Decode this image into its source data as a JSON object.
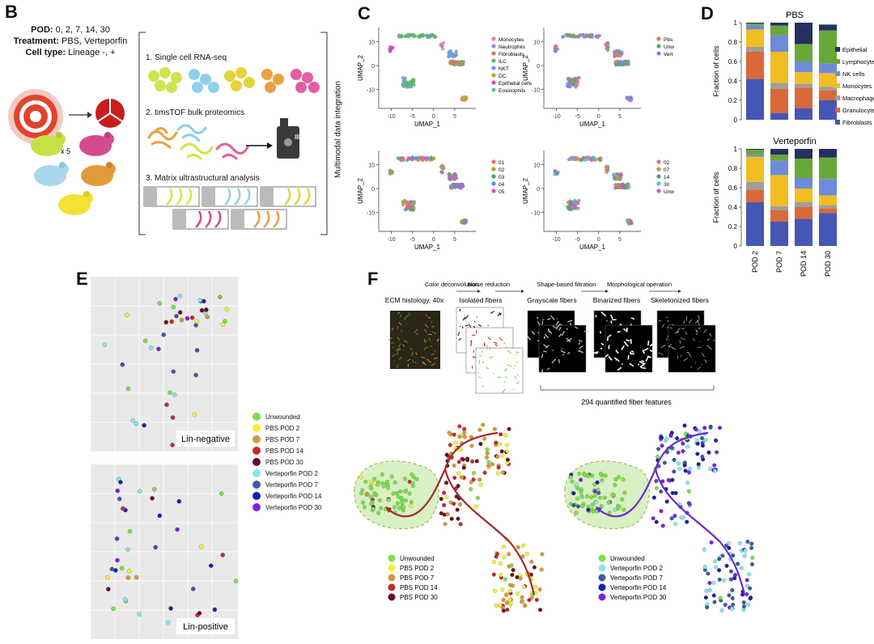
{
  "panels": {
    "B": "B",
    "C": "C",
    "D": "D",
    "E": "E",
    "F": "F"
  },
  "B": {
    "pod_label": "POD:",
    "pod_value": "0, 2, 7, 14, 30",
    "treat_label": "Treatment:",
    "treat_value": "PBS, Verteporfin",
    "cell_label": "Cell type:",
    "cell_value": "Lineage -, +",
    "times": "x 5",
    "step1": "1. Single cell RNA-seq",
    "step2": "2. timsTOF bulk proteomics",
    "step3": "3. Matrix ultrastructural analysis",
    "side": "Multimodal data integration",
    "wound_numbers": [
      "1",
      "2",
      "3"
    ]
  },
  "C": {
    "xlabel": "UMAP_1",
    "ylabel": "UMAP_2",
    "xticks": [
      "-10",
      "-5",
      "0",
      "5"
    ],
    "yticks": [
      "10",
      "0",
      "-10"
    ],
    "legend1": [
      {
        "label": "Monocytes",
        "color": "#e87da8"
      },
      {
        "label": "Neutrophils",
        "color": "#a38ad0"
      },
      {
        "label": "Fibroblasts",
        "color": "#d27b6a"
      },
      {
        "label": "ILC",
        "color": "#63b56a"
      },
      {
        "label": "NKT",
        "color": "#6b9be0"
      },
      {
        "label": "DC",
        "color": "#c4a437"
      },
      {
        "label": "Epithelial cells",
        "color": "#d04ec4"
      },
      {
        "label": "Eosinophils",
        "color": "#6fc596"
      }
    ],
    "legend2": [
      {
        "label": "Pbs",
        "color": "#e57373"
      },
      {
        "label": "Unw",
        "color": "#5aa86a"
      },
      {
        "label": "Vert",
        "color": "#6b8cf0"
      }
    ],
    "legend3": [
      {
        "label": "01",
        "color": "#e57373"
      },
      {
        "label": "02",
        "color": "#a8a040"
      },
      {
        "label": "03",
        "color": "#43a86a"
      },
      {
        "label": "04",
        "color": "#5b8ce8"
      },
      {
        "label": "05",
        "color": "#d05ac4"
      }
    ],
    "legend4": [
      {
        "label": "02",
        "color": "#e57373"
      },
      {
        "label": "07",
        "color": "#a8a040"
      },
      {
        "label": "14",
        "color": "#43a86a"
      },
      {
        "label": "30",
        "color": "#5bb6e8"
      },
      {
        "label": "Unw",
        "color": "#c05ac4"
      }
    ]
  },
  "chart_data": [
    {
      "type": "bar",
      "title": "PBS",
      "ylabel": "Fraction of cells",
      "ylim": [
        0,
        1
      ],
      "yticks": [
        "0",
        "0.2",
        "0.4",
        "0.6",
        "0.8",
        "1"
      ],
      "categories": [
        "POD 2",
        "POD 7",
        "POD 14",
        "POD 30"
      ],
      "stacked": true,
      "series": [
        {
          "name": "Fibroblasts",
          "color": "#4556b4",
          "values": [
            0.42,
            0.07,
            0.12,
            0.2
          ]
        },
        {
          "name": "Granulocytes",
          "color": "#d86a3a",
          "values": [
            0.28,
            0.25,
            0.21,
            0.1
          ]
        },
        {
          "name": "Macrophages",
          "color": "#9e9e9e",
          "values": [
            0.05,
            0.06,
            0.04,
            0.04
          ]
        },
        {
          "name": "Monocytes",
          "color": "#f2bd22",
          "values": [
            0.18,
            0.32,
            0.12,
            0.14
          ]
        },
        {
          "name": "NK cells",
          "color": "#6e8bd8",
          "values": [
            0.04,
            0.17,
            0.11,
            0.1
          ]
        },
        {
          "name": "Lymphocytes",
          "color": "#68a838",
          "values": [
            0.02,
            0.1,
            0.18,
            0.34
          ]
        },
        {
          "name": "Epithelial",
          "color": "#25305f",
          "values": [
            0.01,
            0.03,
            0.22,
            0.06
          ]
        }
      ]
    },
    {
      "type": "bar",
      "title": "Verteporfin",
      "ylabel": "Fraction of cells",
      "ylim": [
        0,
        1
      ],
      "yticks": [
        "0",
        "0.2",
        "0.4",
        "0.6",
        "0.8",
        "1"
      ],
      "categories": [
        "POD 2",
        "POD 7",
        "POD 14",
        "POD 30"
      ],
      "stacked": true,
      "series": [
        {
          "name": "Fibroblasts",
          "color": "#4556b4",
          "values": [
            0.45,
            0.25,
            0.28,
            0.34
          ]
        },
        {
          "name": "Granulocytes",
          "color": "#d86a3a",
          "values": [
            0.13,
            0.12,
            0.12,
            0.05
          ]
        },
        {
          "name": "Macrophages",
          "color": "#9e9e9e",
          "values": [
            0.08,
            0.04,
            0.05,
            0.03
          ]
        },
        {
          "name": "Monocytes",
          "color": "#f2bd22",
          "values": [
            0.26,
            0.32,
            0.14,
            0.1
          ]
        },
        {
          "name": "NK cells",
          "color": "#6e8bd8",
          "values": [
            0.02,
            0.15,
            0.11,
            0.17
          ]
        },
        {
          "name": "Lymphocytes",
          "color": "#68a838",
          "values": [
            0.05,
            0.06,
            0.2,
            0.22
          ]
        },
        {
          "name": "Epithelial",
          "color": "#25305f",
          "values": [
            0.01,
            0.06,
            0.1,
            0.09
          ]
        }
      ]
    }
  ],
  "D": {
    "legend": [
      {
        "label": "Epithelial",
        "color": "#25305f"
      },
      {
        "label": "Lymphocytes",
        "color": "#68a838"
      },
      {
        "label": "NK cells",
        "color": "#6e8bd8"
      },
      {
        "label": "Monocytes",
        "color": "#f2bd22"
      },
      {
        "label": "Macrophages",
        "color": "#9e9e9e"
      },
      {
        "label": "Granulocytes",
        "color": "#d86a3a"
      },
      {
        "label": "Fibroblasts",
        "color": "#4556b4"
      }
    ]
  },
  "E": {
    "top_tag": "Lin-negative",
    "bottom_tag": "Lin-positive",
    "legend": [
      {
        "label": "Unwounded",
        "color": "#7be04a"
      },
      {
        "label": "PBS POD 2",
        "color": "#f5ef3a"
      },
      {
        "label": "PBS POD 7",
        "color": "#d49a3a"
      },
      {
        "label": "PBS POD 14",
        "color": "#c82828"
      },
      {
        "label": "PBS POD 30",
        "color": "#6a1020"
      },
      {
        "label": "Verteporfin POD 2",
        "color": "#86e6ec"
      },
      {
        "label": "Verteporfin POD 7",
        "color": "#3c5aa0"
      },
      {
        "label": "Verteporfin POD 14",
        "color": "#1c1cb4"
      },
      {
        "label": "Verteporfin POD 30",
        "color": "#7a22e0"
      }
    ]
  },
  "F": {
    "op1": "Color deconvolution",
    "op2": "Noise reduction",
    "op3": "Shape-based filtration",
    "op4": "Morphological operation",
    "col1": "ECM histology, 40x",
    "col2": "Isolated fibers",
    "col3": "Grayscale fibers",
    "col4": "Binarized fibers",
    "col5": "Skeletonized fibers",
    "quant": "294 quantified fiber features",
    "legendL": [
      {
        "label": "Unwounded",
        "color": "#7be04a"
      },
      {
        "label": "PBS POD 2",
        "color": "#f5ef3a"
      },
      {
        "label": "PBS POD 7",
        "color": "#d49a3a"
      },
      {
        "label": "PBS POD 14",
        "color": "#c82828"
      },
      {
        "label": "PBS POD 30",
        "color": "#6a1020"
      }
    ],
    "legendR": [
      {
        "label": "Unwounded",
        "color": "#7be04a"
      },
      {
        "label": "Verteporfin POD 2",
        "color": "#86e6ec"
      },
      {
        "label": "Verteporfin POD 7",
        "color": "#3c5aa0"
      },
      {
        "label": "Verteporfin POD 14",
        "color": "#1c1cb4"
      },
      {
        "label": "Verteporfin POD 30",
        "color": "#7a22e0"
      }
    ]
  }
}
